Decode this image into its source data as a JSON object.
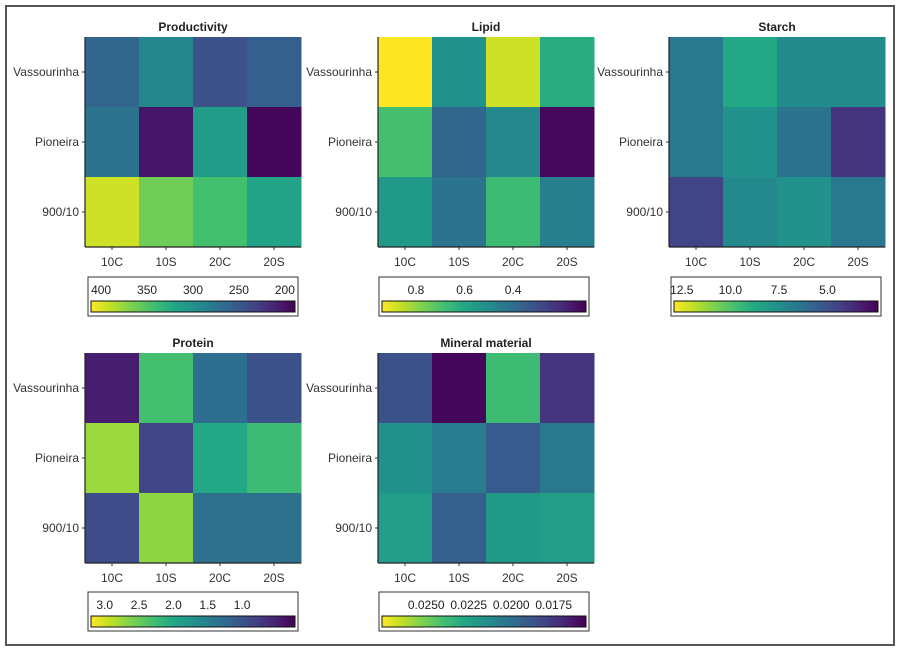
{
  "chart_data": [
    {
      "type": "heatmap",
      "title": "Productivity",
      "x_categories": [
        "10C",
        "10S",
        "20C",
        "20S"
      ],
      "y_categories": [
        "Vassourinha",
        "Pioneira",
        "900/10"
      ],
      "values": [
        [
          262,
          289,
          245,
          256
        ],
        [
          273,
          202,
          311,
          193
        ],
        [
          395,
          362,
          344,
          316
        ]
      ],
      "colorbar": {
        "ticks": [
          "400",
          "350",
          "300",
          "250",
          "200"
        ],
        "tick_values": [
          400,
          350,
          300,
          250,
          200
        ],
        "range": [
          411,
          189
        ],
        "orientation": "reversed",
        "colormap": "viridis"
      }
    },
    {
      "type": "heatmap",
      "title": "Lipid",
      "x_categories": [
        "10C",
        "10S",
        "20C",
        "20S"
      ],
      "y_categories": [
        "Vassourinha",
        "Pioneira",
        "900/10"
      ],
      "values": [
        [
          0.94,
          0.52,
          0.88,
          0.62
        ],
        [
          0.69,
          0.38,
          0.49,
          0.12
        ],
        [
          0.55,
          0.42,
          0.67,
          0.46
        ]
      ],
      "colorbar": {
        "ticks": [
          "0.8",
          "0.6",
          "0.4"
        ],
        "tick_values": [
          0.8,
          0.6,
          0.4
        ],
        "range": [
          0.94,
          0.1
        ],
        "orientation": "reversed",
        "colormap": "viridis"
      }
    },
    {
      "type": "heatmap",
      "title": "Starch",
      "x_categories": [
        "10C",
        "10S",
        "20C",
        "20S"
      ],
      "y_categories": [
        "Vassourinha",
        "Pioneira",
        "900/10"
      ],
      "values": [
        [
          6.6,
          8.7,
          7.4,
          7.4
        ],
        [
          6.6,
          7.7,
          6.4,
          4.0
        ],
        [
          4.5,
          7.3,
          7.7,
          6.6
        ]
      ],
      "colorbar": {
        "ticks": [
          "12.5",
          "10.0",
          "7.5",
          "5.0"
        ],
        "tick_values": [
          12.5,
          10.0,
          7.5,
          5.0
        ],
        "range": [
          12.9,
          2.4
        ],
        "orientation": "reversed",
        "colormap": "viridis"
      }
    },
    {
      "type": "heatmap",
      "title": "Protein",
      "x_categories": [
        "10C",
        "10S",
        "20C",
        "20S"
      ],
      "y_categories": [
        "Vassourinha",
        "Pioneira",
        "900/10"
      ],
      "values": [
        [
          0.47,
          2.31,
          1.3,
          0.97
        ],
        [
          2.75,
          0.82,
          2.01,
          2.25
        ],
        [
          0.91,
          2.7,
          1.33,
          1.33
        ]
      ],
      "colorbar": {
        "ticks": [
          "3.0",
          "2.5",
          "2.0",
          "1.5",
          "1.0"
        ],
        "tick_values": [
          3.0,
          2.5,
          2.0,
          1.5,
          1.0
        ],
        "range": [
          3.2,
          0.23
        ],
        "orientation": "reversed",
        "colormap": "viridis"
      }
    },
    {
      "type": "heatmap",
      "title": "Mineral material",
      "x_categories": [
        "10C",
        "10S",
        "20C",
        "20S"
      ],
      "y_categories": [
        "Vassourinha",
        "Pioneira",
        "900/10"
      ],
      "values": [
        [
          0.0186,
          0.0158,
          0.0238,
          0.0174
        ],
        [
          0.0216,
          0.0206,
          0.019,
          0.0204
        ],
        [
          0.0222,
          0.0192,
          0.022,
          0.0222
        ]
      ],
      "colorbar": {
        "ticks": [
          "0.0250",
          "0.0225",
          "0.0200",
          "0.0175"
        ],
        "tick_values": [
          0.025,
          0.0225,
          0.02,
          0.0175
        ],
        "range": [
          0.0276,
          0.0156
        ],
        "orientation": "reversed",
        "colormap": "viridis"
      }
    }
  ]
}
